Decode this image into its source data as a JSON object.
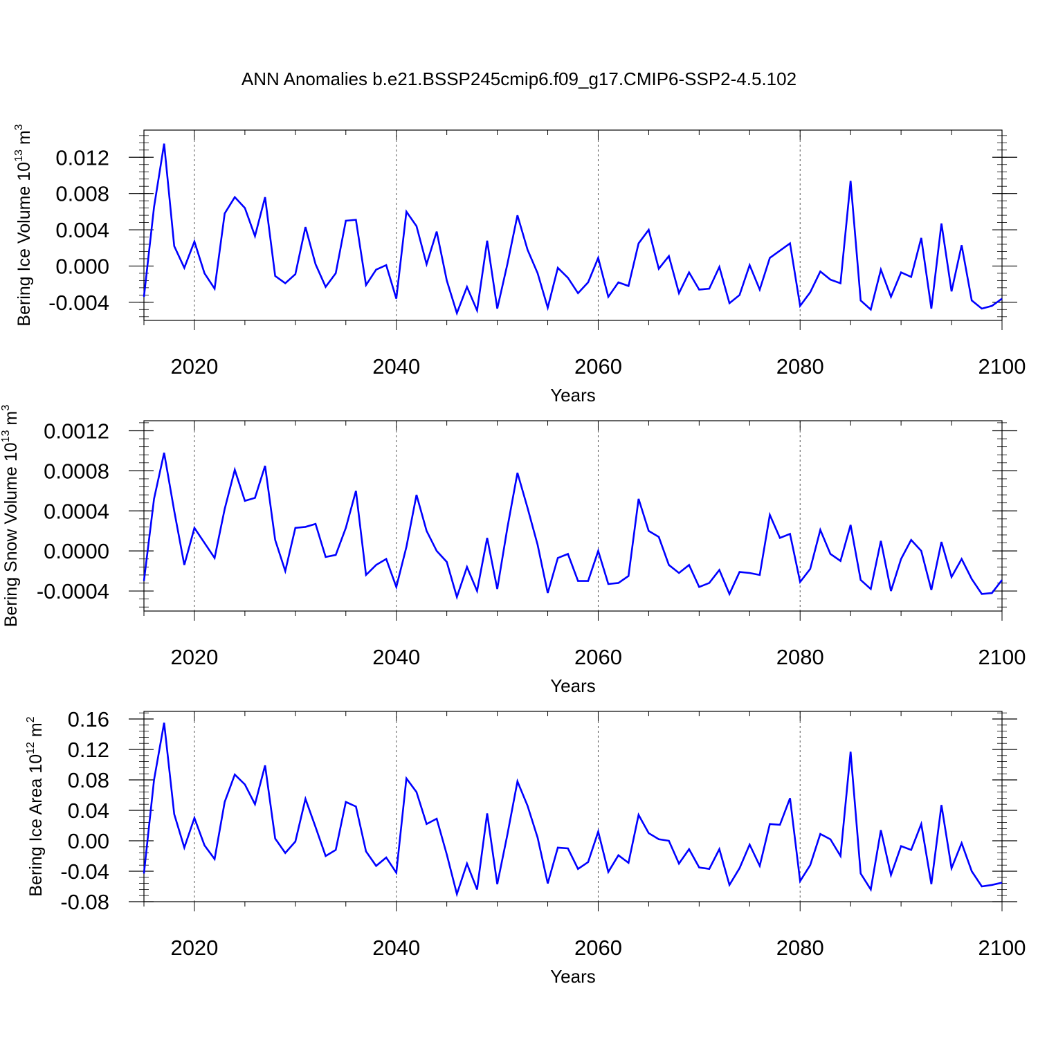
{
  "title": "ANN Anomalies b.e21.BSSP245cmip6.f09_g17.CMIP6-SSP2-4.5.102",
  "line_color": "#0000ff",
  "chart_data": [
    {
      "type": "line",
      "xlabel": "Years",
      "ylabel": {
        "text": "Bering Ice Volume 10",
        "sup": "13",
        "unit": " m",
        "unit_sup": "3"
      },
      "xlim": [
        2015,
        2100
      ],
      "ylim": [
        -0.006,
        0.015
      ],
      "xticks": [
        2020,
        2040,
        2060,
        2080,
        2100
      ],
      "yticks": [
        -0.004,
        0.0,
        0.004,
        0.008,
        0.012
      ],
      "ytick_labels": [
        "-0.004",
        "0.000",
        "0.004",
        "0.008",
        "0.012"
      ],
      "grid": "dashed vertical lines at major x ticks",
      "series": [
        {
          "x": [
            2015,
            2016,
            2017,
            2018,
            2019,
            2020,
            2021,
            2022,
            2023,
            2024,
            2025,
            2026,
            2027,
            2028,
            2029,
            2030,
            2031,
            2032,
            2033,
            2034,
            2035,
            2036,
            2037,
            2038,
            2039,
            2040,
            2041,
            2042,
            2043,
            2044,
            2045,
            2046,
            2047,
            2048,
            2049,
            2050,
            2051,
            2052,
            2053,
            2054,
            2055,
            2056,
            2057,
            2058,
            2059,
            2060,
            2061,
            2062,
            2063,
            2064,
            2065,
            2066,
            2067,
            2068,
            2069,
            2070,
            2071,
            2072,
            2073,
            2074,
            2075,
            2076,
            2077,
            2078,
            2079,
            2080,
            2081,
            2082,
            2083,
            2084,
            2085,
            2086,
            2087,
            2088,
            2089,
            2090,
            2091,
            2092,
            2093,
            2094,
            2095,
            2096,
            2097,
            2098,
            2099,
            2100
          ],
          "values": [
            -0.0034,
            0.0065,
            0.0135,
            0.0022,
            -0.0002,
            0.0027,
            -0.0008,
            -0.0025,
            0.0058,
            0.0076,
            0.0064,
            0.0033,
            0.0076,
            -0.0011,
            -0.0019,
            -0.0009,
            0.0043,
            0.0002,
            -0.0023,
            -0.0008,
            0.005,
            0.0051,
            -0.0021,
            -0.0004,
            0.0001,
            -0.0036,
            0.006,
            0.0044,
            0.0002,
            0.0038,
            -0.0016,
            -0.0052,
            -0.0023,
            -0.0049,
            0.0028,
            -0.0047,
            0.0002,
            0.0056,
            0.0018,
            -0.0008,
            -0.0046,
            -0.0002,
            -0.0013,
            -0.003,
            -0.0018,
            0.0009,
            -0.0034,
            -0.0018,
            -0.0022,
            0.0025,
            0.004,
            -0.0003,
            0.0011,
            -0.003,
            -0.0007,
            -0.0026,
            -0.0025,
            -0.0001,
            -0.0041,
            -0.0032,
            0.0001,
            -0.0026,
            0.0009,
            0.0017,
            0.0025,
            -0.0044,
            -0.0029,
            -0.0006,
            -0.0015,
            -0.0019,
            0.0094,
            -0.0038,
            -0.0048,
            -0.0004,
            -0.0034,
            -0.0007,
            -0.0012,
            0.0031,
            -0.0047,
            0.0047,
            -0.0028,
            0.0023,
            -0.0038,
            -0.0047,
            -0.0044,
            -0.0036
          ]
        }
      ]
    },
    {
      "type": "line",
      "xlabel": "Years",
      "ylabel": {
        "text": "Bering Snow Volume 10",
        "sup": "13",
        "unit": " m",
        "unit_sup": "3"
      },
      "xlim": [
        2015,
        2100
      ],
      "ylim": [
        -0.0006,
        0.0013
      ],
      "xticks": [
        2020,
        2040,
        2060,
        2080,
        2100
      ],
      "yticks": [
        -0.0004,
        0.0,
        0.0004,
        0.0008,
        0.0012
      ],
      "ytick_labels": [
        "-0.0004",
        "0.0000",
        "0.0004",
        "0.0008",
        "0.0012"
      ],
      "grid": "dashed vertical lines at major x ticks",
      "series": [
        {
          "x": [
            2015,
            2016,
            2017,
            2018,
            2019,
            2020,
            2021,
            2022,
            2023,
            2024,
            2025,
            2026,
            2027,
            2028,
            2029,
            2030,
            2031,
            2032,
            2033,
            2034,
            2035,
            2036,
            2037,
            2038,
            2039,
            2040,
            2041,
            2042,
            2043,
            2044,
            2045,
            2046,
            2047,
            2048,
            2049,
            2050,
            2051,
            2052,
            2053,
            2054,
            2055,
            2056,
            2057,
            2058,
            2059,
            2060,
            2061,
            2062,
            2063,
            2064,
            2065,
            2066,
            2067,
            2068,
            2069,
            2070,
            2071,
            2072,
            2073,
            2074,
            2075,
            2076,
            2077,
            2078,
            2079,
            2080,
            2081,
            2082,
            2083,
            2084,
            2085,
            2086,
            2087,
            2088,
            2089,
            2090,
            2091,
            2092,
            2093,
            2094,
            2095,
            2096,
            2097,
            2098,
            2099,
            2100
          ],
          "values": [
            -0.0003,
            0.00052,
            0.00098,
            0.0004,
            -0.00014,
            0.00023,
            8e-05,
            -7e-05,
            0.00042,
            0.00081,
            0.0005,
            0.00053,
            0.00085,
            0.00011,
            -0.0002,
            0.00023,
            0.00024,
            0.00027,
            -6e-05,
            -4e-05,
            0.00023,
            0.0006,
            -0.00024,
            -0.00014,
            -8e-05,
            -0.00036,
            4e-05,
            0.00056,
            0.0002,
            0.0,
            -0.00011,
            -0.00046,
            -0.00016,
            -0.0004,
            0.00013,
            -0.00038,
            0.00023,
            0.00078,
            0.00043,
            6e-05,
            -0.00042,
            -7e-05,
            -3e-05,
            -0.0003,
            -0.0003,
            0.0,
            -0.00033,
            -0.00032,
            -0.00025,
            0.00052,
            0.0002,
            0.00014,
            -0.00014,
            -0.00022,
            -0.00014,
            -0.00036,
            -0.00032,
            -0.00019,
            -0.00043,
            -0.00021,
            -0.00022,
            -0.00024,
            0.00036,
            0.00013,
            0.00017,
            -0.00031,
            -0.00018,
            0.00021,
            -3e-05,
            -0.0001,
            0.00026,
            -0.00029,
            -0.00038,
            0.0001,
            -0.0004,
            -8e-05,
            0.00011,
            0.0,
            -0.00039,
            9e-05,
            -0.00026,
            -8e-05,
            -0.00028,
            -0.00043,
            -0.00042,
            -0.00029
          ]
        }
      ]
    },
    {
      "type": "line",
      "xlabel": "Years",
      "ylabel": {
        "text": "Bering Ice Area 10",
        "sup": "12",
        "unit": " m",
        "unit_sup": "2"
      },
      "xlim": [
        2015,
        2100
      ],
      "ylim": [
        -0.08,
        0.17
      ],
      "xticks": [
        2020,
        2040,
        2060,
        2080,
        2100
      ],
      "yticks": [
        -0.08,
        -0.04,
        0.0,
        0.04,
        0.08,
        0.12,
        0.16
      ],
      "ytick_labels": [
        "-0.08",
        "-0.04",
        "0.00",
        "0.04",
        "0.08",
        "0.12",
        "0.16"
      ],
      "grid": "dashed vertical lines at major x ticks",
      "series": [
        {
          "x": [
            2015,
            2016,
            2017,
            2018,
            2019,
            2020,
            2021,
            2022,
            2023,
            2024,
            2025,
            2026,
            2027,
            2028,
            2029,
            2030,
            2031,
            2032,
            2033,
            2034,
            2035,
            2036,
            2037,
            2038,
            2039,
            2040,
            2041,
            2042,
            2043,
            2044,
            2045,
            2046,
            2047,
            2048,
            2049,
            2050,
            2051,
            2052,
            2053,
            2054,
            2055,
            2056,
            2057,
            2058,
            2059,
            2060,
            2061,
            2062,
            2063,
            2064,
            2065,
            2066,
            2067,
            2068,
            2069,
            2070,
            2071,
            2072,
            2073,
            2074,
            2075,
            2076,
            2077,
            2078,
            2079,
            2080,
            2081,
            2082,
            2083,
            2084,
            2085,
            2086,
            2087,
            2088,
            2089,
            2090,
            2091,
            2092,
            2093,
            2094,
            2095,
            2096,
            2097,
            2098,
            2099,
            2100
          ],
          "values": [
            -0.043,
            0.08,
            0.155,
            0.035,
            -0.009,
            0.03,
            -0.006,
            -0.024,
            0.051,
            0.087,
            0.074,
            0.048,
            0.099,
            0.003,
            -0.016,
            -0.001,
            0.055,
            0.018,
            -0.02,
            -0.012,
            0.051,
            0.045,
            -0.014,
            -0.033,
            -0.022,
            -0.042,
            0.082,
            0.064,
            0.022,
            0.029,
            -0.018,
            -0.07,
            -0.03,
            -0.064,
            0.036,
            -0.057,
            0.008,
            0.078,
            0.046,
            0.004,
            -0.056,
            -0.009,
            -0.01,
            -0.037,
            -0.028,
            0.012,
            -0.041,
            -0.019,
            -0.029,
            0.034,
            0.01,
            0.002,
            0.0,
            -0.03,
            -0.011,
            -0.035,
            -0.037,
            -0.011,
            -0.058,
            -0.036,
            -0.005,
            -0.033,
            0.022,
            0.021,
            0.056,
            -0.053,
            -0.032,
            0.009,
            0.002,
            -0.02,
            0.117,
            -0.043,
            -0.064,
            0.014,
            -0.045,
            -0.007,
            -0.012,
            0.022,
            -0.057,
            0.047,
            -0.036,
            -0.003,
            -0.04,
            -0.06,
            -0.058,
            -0.055
          ]
        }
      ]
    }
  ]
}
